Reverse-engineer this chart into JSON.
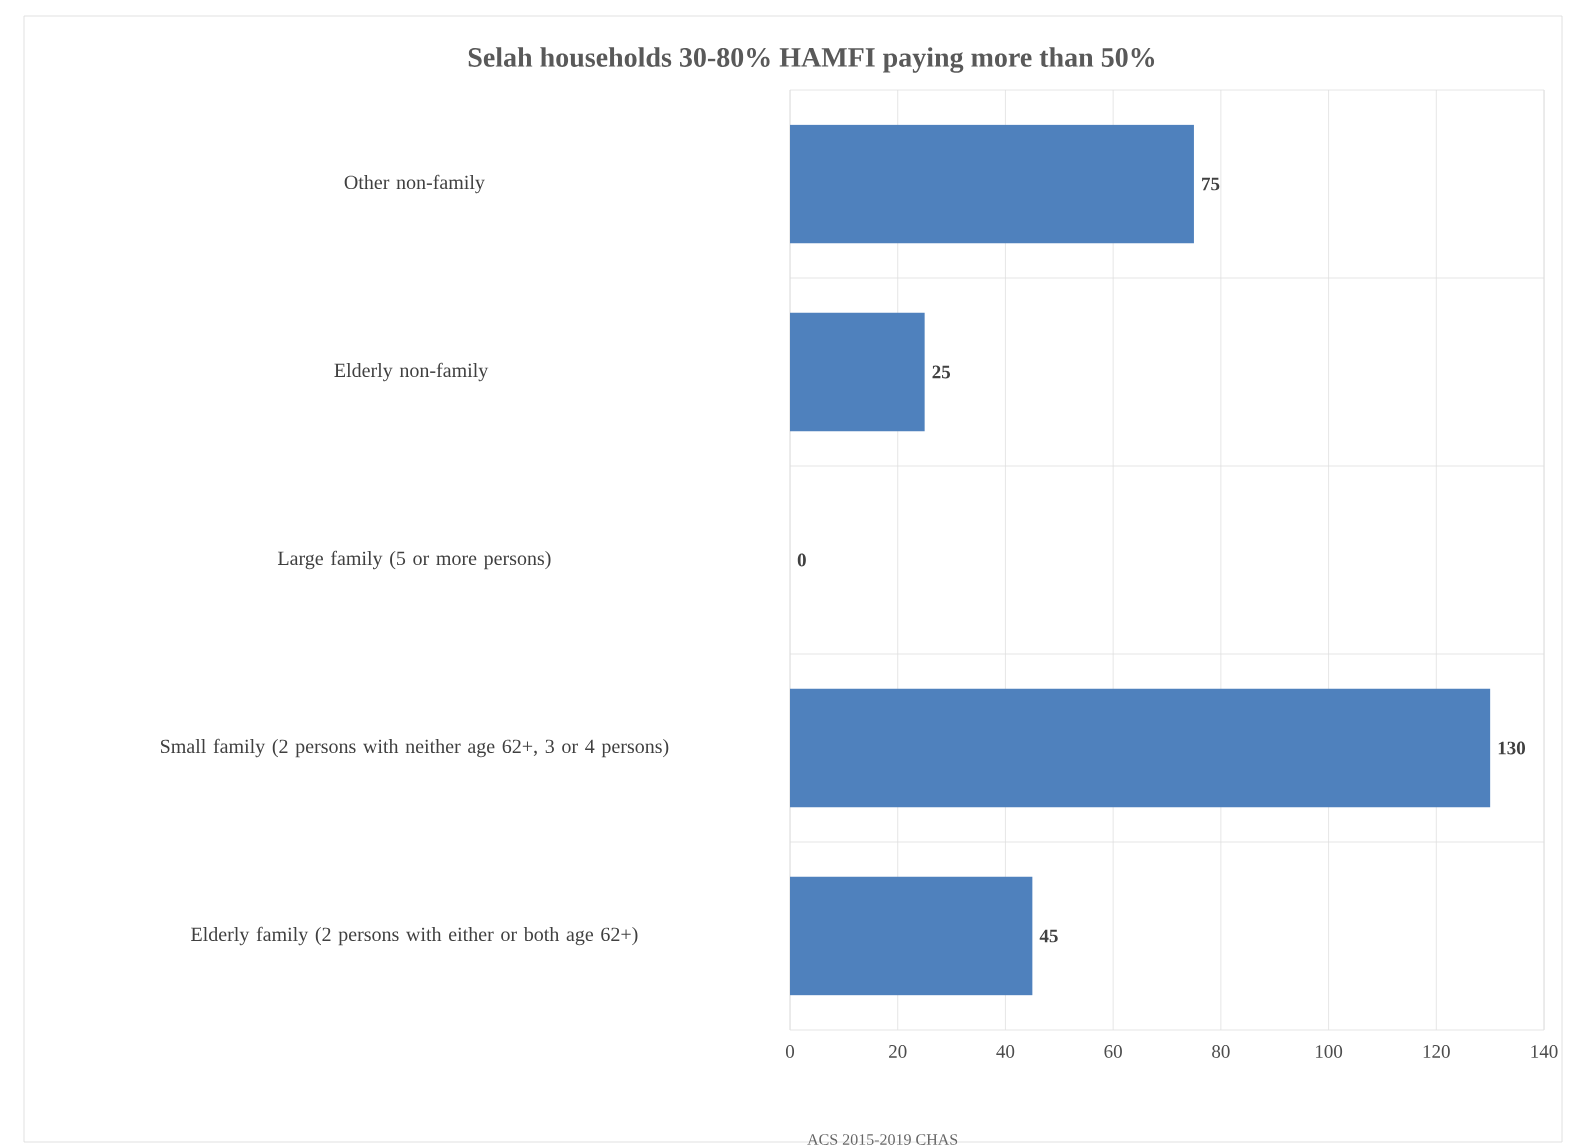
{
  "chart_data": {
    "type": "bar",
    "orientation": "horizontal",
    "title": "Selah households 30-80% HAMFI paying more than 50%",
    "categories": [
      "Other non-family",
      "Elderly non-family ",
      "Large family (5 or more persons)",
      "Small family (2 persons with neither age 62+, 3 or 4 persons)",
      "Elderly family (2 persons with either or both age 62+)"
    ],
    "values": [
      75,
      25,
      0,
      130,
      45
    ],
    "color": "#4f81bd",
    "xlim": [
      0,
      140
    ],
    "xticks": [
      0,
      20,
      40,
      60,
      80,
      100,
      120,
      140
    ],
    "grid": "x",
    "data_labels": true,
    "annotations": [
      "ACS 2015-2019 CHAS"
    ]
  }
}
